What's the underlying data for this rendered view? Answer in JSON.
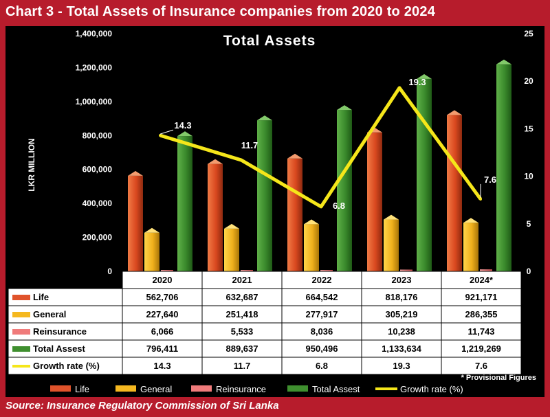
{
  "header": {
    "title": "Chart 3 - Total Assets of Insurance companies from 2020 to 2024"
  },
  "footer": {
    "source": "Source: Insurance Regulatory Commission of Sri Lanka"
  },
  "chart_data": {
    "type": "bar",
    "title": "Total Assets",
    "ylabel": "LKR MILLION",
    "ylim": [
      0,
      1400000
    ],
    "y_ticks": [
      "1,400,000",
      "1,200,000",
      "1,000,000",
      "800,000",
      "600,000",
      "400,000",
      "200,000",
      "0"
    ],
    "y2lim": [
      0,
      25
    ],
    "y2_ticks": [
      "25",
      "20",
      "15",
      "10",
      "5",
      "0"
    ],
    "categories": [
      "2020",
      "2021",
      "2022",
      "2023",
      "2024*"
    ],
    "series": [
      {
        "name": "Life",
        "type": "bar",
        "color": "#e0532b",
        "values": [
          562706,
          632687,
          664542,
          818176,
          921171
        ],
        "labels": [
          "562,706",
          "632,687",
          "664,542",
          "818,176",
          "921,171"
        ]
      },
      {
        "name": "General",
        "type": "bar",
        "color": "#f5b820",
        "values": [
          227640,
          251418,
          277917,
          305219,
          286355
        ],
        "labels": [
          "227,640",
          "251,418",
          "277,917",
          "305,219",
          "286,355"
        ]
      },
      {
        "name": "Reinsurance",
        "type": "bar",
        "color": "#f07b7b",
        "values": [
          6066,
          5533,
          8036,
          10238,
          11743
        ],
        "labels": [
          "6,066",
          "5,533",
          "8,036",
          "10,238",
          "11,743"
        ]
      },
      {
        "name": "Total Assest",
        "type": "bar",
        "color": "#3f8f2f",
        "values": [
          796411,
          889637,
          950496,
          1133634,
          1219269
        ],
        "labels": [
          "796,411",
          "889,637",
          "950,496",
          "1,133,634",
          "1,219,269"
        ]
      },
      {
        "name": "Growth rate (%)",
        "type": "line",
        "axis": "right",
        "color": "#f5e61a",
        "values": [
          14.3,
          11.7,
          6.8,
          19.3,
          7.6
        ],
        "labels": [
          "14.3",
          "11.7",
          "6.8",
          "19.3",
          "7.6"
        ]
      }
    ],
    "note": "* Provisional Figures",
    "legend_position": "bottom",
    "grid": false
  }
}
